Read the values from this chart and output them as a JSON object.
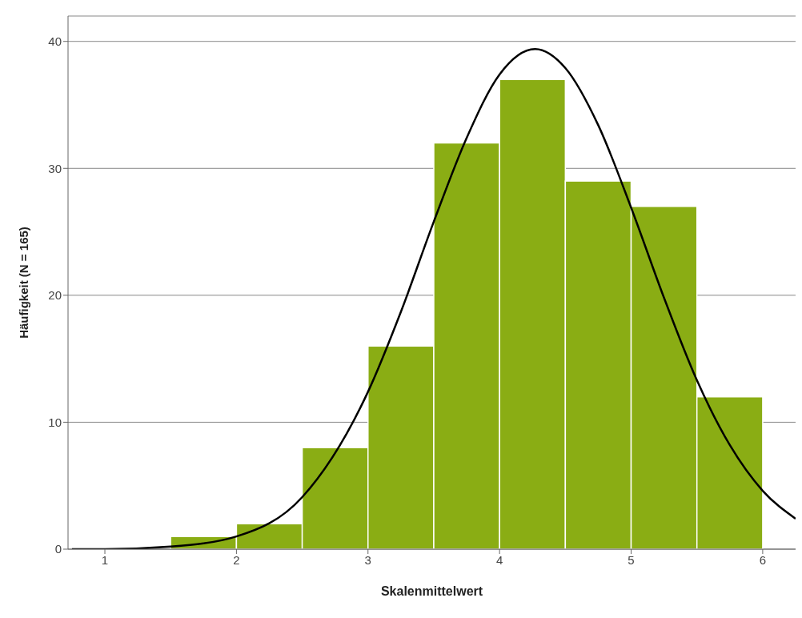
{
  "chart_data": {
    "type": "histogram",
    "xlabel": "Skalenmittelwert",
    "ylabel": "Häufigkeit (N = 165)",
    "bins": [
      1.5,
      2,
      2.5,
      3,
      3.5,
      4,
      4.5,
      5,
      5.5,
      6
    ],
    "values": [
      1,
      2,
      8,
      16,
      32,
      37,
      29,
      27,
      12
    ],
    "color": "#8aad14",
    "series": [
      {
        "type": "line",
        "color": "#000000",
        "x": [
          0.75,
          1,
          1.5,
          2,
          2.5,
          3,
          3.25,
          3.5,
          3.75,
          4,
          4.27,
          4.5,
          4.75,
          5,
          5.25,
          5.5,
          5.75,
          6,
          6.25
        ],
        "values": [
          0,
          0,
          0.2,
          1,
          4.1,
          12.4,
          18.7,
          25.8,
          32.4,
          37.4,
          39.4,
          37.9,
          33.4,
          26.9,
          19.8,
          13.3,
          8.2,
          4.6,
          2.4
        ]
      }
    ],
    "xlim": [
      0.72,
      6.25
    ],
    "xticks": [
      1,
      2,
      3,
      4,
      5,
      6
    ],
    "ylim": [
      0,
      42
    ],
    "yticks": [
      0,
      10,
      20,
      30,
      40
    ],
    "grid": "y",
    "marker": "none",
    "line_style": "solid"
  }
}
